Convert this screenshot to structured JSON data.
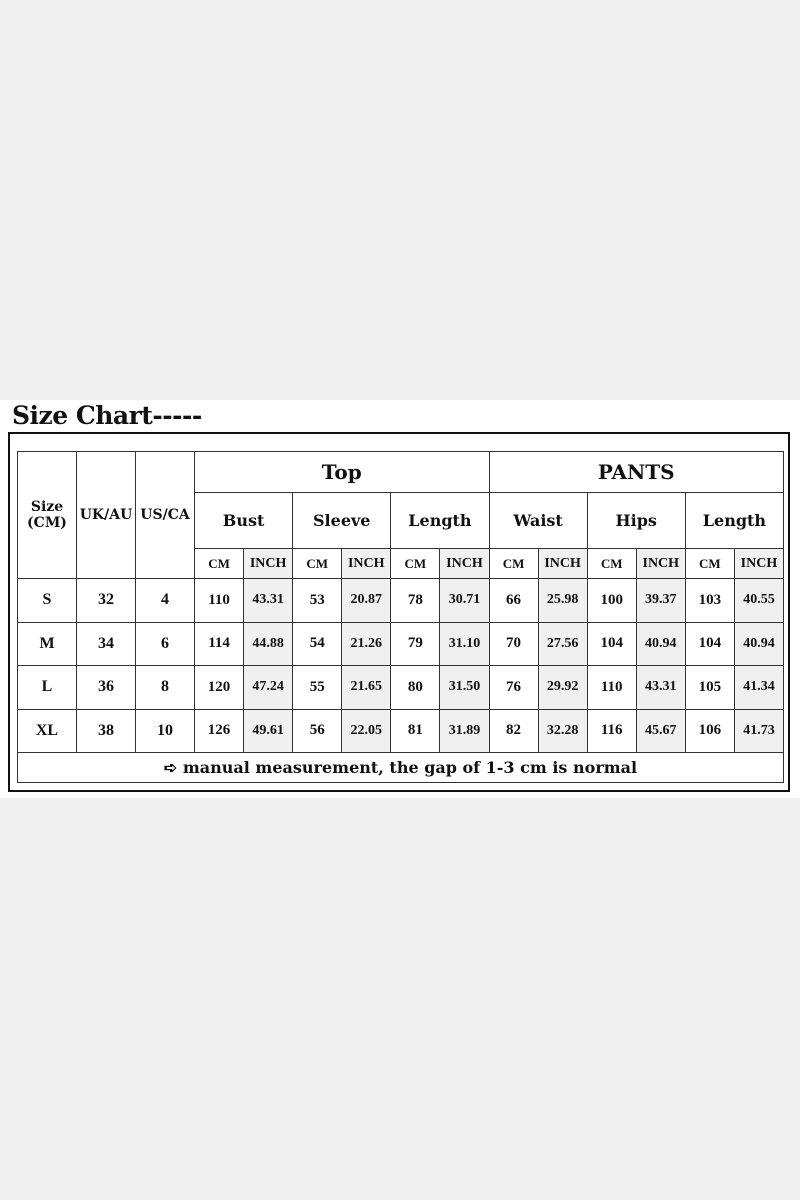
{
  "title": "Size Chart-----",
  "headers": {
    "size": "Size (CM)",
    "uk": "UK/AU",
    "us": "US/CA",
    "top": "Top",
    "pants": "PANTS",
    "measures": [
      "Bust",
      "Sleeve",
      "Length",
      "Waist",
      "Hips",
      "Length"
    ],
    "unit_cm": "CM",
    "unit_inch": "INCH"
  },
  "rows": [
    {
      "size": "S",
      "uk": "32",
      "us": "4",
      "values": [
        "110",
        "43.31",
        "53",
        "20.87",
        "78",
        "30.71",
        "66",
        "25.98",
        "100",
        "39.37",
        "103",
        "40.55"
      ]
    },
    {
      "size": "M",
      "uk": "34",
      "us": "6",
      "values": [
        "114",
        "44.88",
        "54",
        "21.26",
        "79",
        "31.10",
        "70",
        "27.56",
        "104",
        "40.94",
        "104",
        "40.94"
      ]
    },
    {
      "size": "L",
      "uk": "36",
      "us": "8",
      "values": [
        "120",
        "47.24",
        "55",
        "21.65",
        "80",
        "31.50",
        "76",
        "29.92",
        "110",
        "43.31",
        "105",
        "41.34"
      ]
    },
    {
      "size": "XL",
      "uk": "38",
      "us": "10",
      "values": [
        "126",
        "49.61",
        "56",
        "22.05",
        "81",
        "31.89",
        "82",
        "32.28",
        "116",
        "45.67",
        "106",
        "41.73"
      ]
    }
  ],
  "footer": {
    "arrow_icon": "right-arrow-icon",
    "arrow": "➪",
    "text": "manual measurement, the gap of 1-3 cm is normal"
  },
  "colors": {
    "inch_cell_bg": "#f0f0f0",
    "border": "#333333"
  }
}
